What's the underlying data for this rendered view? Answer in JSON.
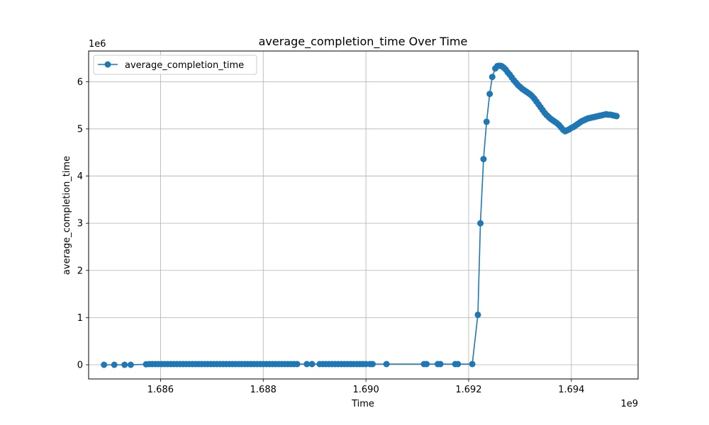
{
  "chart_data": {
    "type": "line",
    "title": "average_completion_time Over Time",
    "xlabel": "Time",
    "ylabel": "average_completion_time",
    "x_offset_label": "1e9",
    "y_offset_label": "1e6",
    "xlim": [
      1684600000,
      1695300000
    ],
    "ylim": [
      -300000,
      6650000
    ],
    "x_ticks": [
      1686000000,
      1688000000,
      1690000000,
      1692000000,
      1694000000
    ],
    "x_tick_labels": [
      "1.686",
      "1.688",
      "1.690",
      "1.692",
      "1.694"
    ],
    "y_ticks": [
      0,
      1000000,
      2000000,
      3000000,
      4000000,
      5000000,
      6000000
    ],
    "y_tick_labels": [
      "0",
      "1",
      "2",
      "3",
      "4",
      "5",
      "6"
    ],
    "grid": true,
    "legend": {
      "position": "top-left",
      "entries": [
        "average_completion_time"
      ]
    },
    "series": [
      {
        "name": "average_completion_time",
        "color": "#1f77b4",
        "marker": "circle",
        "x": [
          1684900000,
          1685100000,
          1685300000,
          1685420000,
          1685720000,
          1685780000,
          1685840000,
          1685900000,
          1685960000,
          1686020000,
          1686080000,
          1686140000,
          1686200000,
          1686260000,
          1686320000,
          1686380000,
          1686440000,
          1686500000,
          1686560000,
          1686620000,
          1686680000,
          1686740000,
          1686800000,
          1686860000,
          1686920000,
          1686980000,
          1687040000,
          1687100000,
          1687160000,
          1687220000,
          1687280000,
          1687340000,
          1687400000,
          1687460000,
          1687520000,
          1687580000,
          1687640000,
          1687700000,
          1687760000,
          1687820000,
          1687880000,
          1687940000,
          1688000000,
          1688060000,
          1688120000,
          1688180000,
          1688240000,
          1688300000,
          1688360000,
          1688420000,
          1688480000,
          1688540000,
          1688600000,
          1688660000,
          1688850000,
          1688950000,
          1689100000,
          1689160000,
          1689220000,
          1689280000,
          1689340000,
          1689400000,
          1689460000,
          1689520000,
          1689580000,
          1689640000,
          1689700000,
          1689760000,
          1689820000,
          1689880000,
          1689940000,
          1690000000,
          1690080000,
          1690130000,
          1690400000,
          1691130000,
          1691180000,
          1691400000,
          1691450000,
          1691740000,
          1691790000,
          1692070000,
          1692180000,
          1692230000,
          1692290000,
          1692350000,
          1692410000,
          1692460000,
          1692520000,
          1692560000,
          1692600000,
          1692640000,
          1692680000,
          1692720000,
          1692760000,
          1692800000,
          1692840000,
          1692880000,
          1692920000,
          1692960000,
          1693000000,
          1693040000,
          1693080000,
          1693120000,
          1693160000,
          1693200000,
          1693240000,
          1693280000,
          1693320000,
          1693360000,
          1693400000,
          1693440000,
          1693480000,
          1693520000,
          1693560000,
          1693600000,
          1693640000,
          1693680000,
          1693720000,
          1693760000,
          1693800000,
          1693840000,
          1693880000,
          1693920000,
          1693960000,
          1694000000,
          1694040000,
          1694080000,
          1694120000,
          1694160000,
          1694200000,
          1694240000,
          1694280000,
          1694320000,
          1694360000,
          1694400000,
          1694440000,
          1694480000,
          1694520000,
          1694560000,
          1694600000,
          1694640000,
          1694680000,
          1694720000,
          1694760000,
          1694800000,
          1694840000,
          1694880000
        ],
        "y": [
          0,
          0,
          0,
          0,
          10000,
          15000,
          15000,
          15000,
          15000,
          15000,
          15000,
          15000,
          15000,
          15000,
          15000,
          15000,
          15000,
          15000,
          15000,
          15000,
          15000,
          15000,
          15000,
          15000,
          15000,
          15000,
          15000,
          15000,
          15000,
          15000,
          15000,
          15000,
          15000,
          15000,
          15000,
          15000,
          15000,
          15000,
          15000,
          15000,
          15000,
          15000,
          15000,
          15000,
          15000,
          15000,
          15000,
          15000,
          15000,
          15000,
          15000,
          15000,
          15000,
          15000,
          15000,
          15000,
          15000,
          15000,
          15000,
          15000,
          15000,
          15000,
          15000,
          15000,
          15000,
          15000,
          15000,
          15000,
          15000,
          15000,
          15000,
          15000,
          15000,
          15000,
          15000,
          15000,
          15000,
          15000,
          15000,
          15000,
          15000,
          15000,
          1060000,
          3000000,
          4360000,
          5150000,
          5740000,
          6100000,
          6280000,
          6330000,
          6340000,
          6330000,
          6300000,
          6260000,
          6200000,
          6150000,
          6090000,
          6030000,
          5980000,
          5930000,
          5890000,
          5850000,
          5820000,
          5790000,
          5760000,
          5730000,
          5690000,
          5640000,
          5580000,
          5520000,
          5460000,
          5400000,
          5340000,
          5290000,
          5250000,
          5210000,
          5180000,
          5150000,
          5120000,
          5080000,
          5030000,
          4980000,
          4950000,
          4970000,
          4990000,
          5020000,
          5040000,
          5070000,
          5100000,
          5130000,
          5160000,
          5180000,
          5200000,
          5220000,
          5230000,
          5240000,
          5250000,
          5260000,
          5270000,
          5280000,
          5290000,
          5300000,
          5310000,
          5300000,
          5300000,
          5290000,
          5280000,
          5270000
        ]
      }
    ]
  }
}
